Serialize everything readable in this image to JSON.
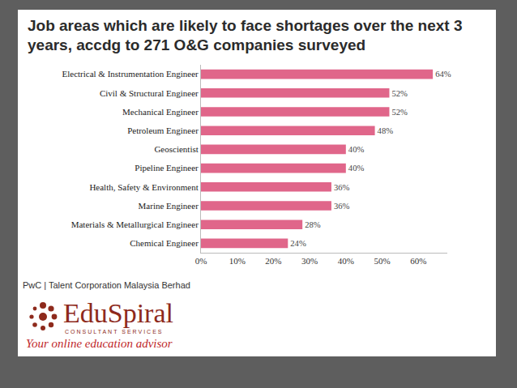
{
  "chart_data": {
    "type": "bar",
    "orientation": "horizontal",
    "title": "Job areas which are likely to face shortages over the next 3 years, accdg to 271 O&G companies surveyed",
    "categories": [
      "Electrical & Instrumentation Engineer",
      "Civil & Structural Engineer",
      "Mechanical Engineer",
      "Petroleum Engineer",
      "Geoscientist",
      "Pipeline Engineer",
      "Health, Safety & Environment",
      "Marine Engineer",
      "Materials & Metallurgical Engineer",
      "Chemical Engineer"
    ],
    "values": [
      64,
      52,
      52,
      48,
      40,
      40,
      36,
      36,
      28,
      24
    ],
    "value_labels": [
      "64%",
      "52%",
      "52%",
      "48%",
      "40%",
      "40%",
      "36%",
      "36%",
      "28%",
      "24%"
    ],
    "color": "#e0668a",
    "xlim": [
      0,
      68
    ],
    "xticks": [
      {
        "value": 0,
        "label": "0%"
      },
      {
        "value": 10,
        "label": "10%"
      },
      {
        "value": 20,
        "label": "20%"
      },
      {
        "value": 30,
        "label": "30%"
      },
      {
        "value": 40,
        "label": "40%"
      },
      {
        "value": 50,
        "label": "50%"
      },
      {
        "value": 60,
        "label": "60%"
      }
    ],
    "grid": false,
    "data_labels": true
  },
  "source": "PwC | Talent Corporation Malaysia Berhad",
  "logo": {
    "name": "EduSpiral",
    "tagline": "CONSULTANT SERVICES",
    "motto": "Your online education advisor"
  }
}
